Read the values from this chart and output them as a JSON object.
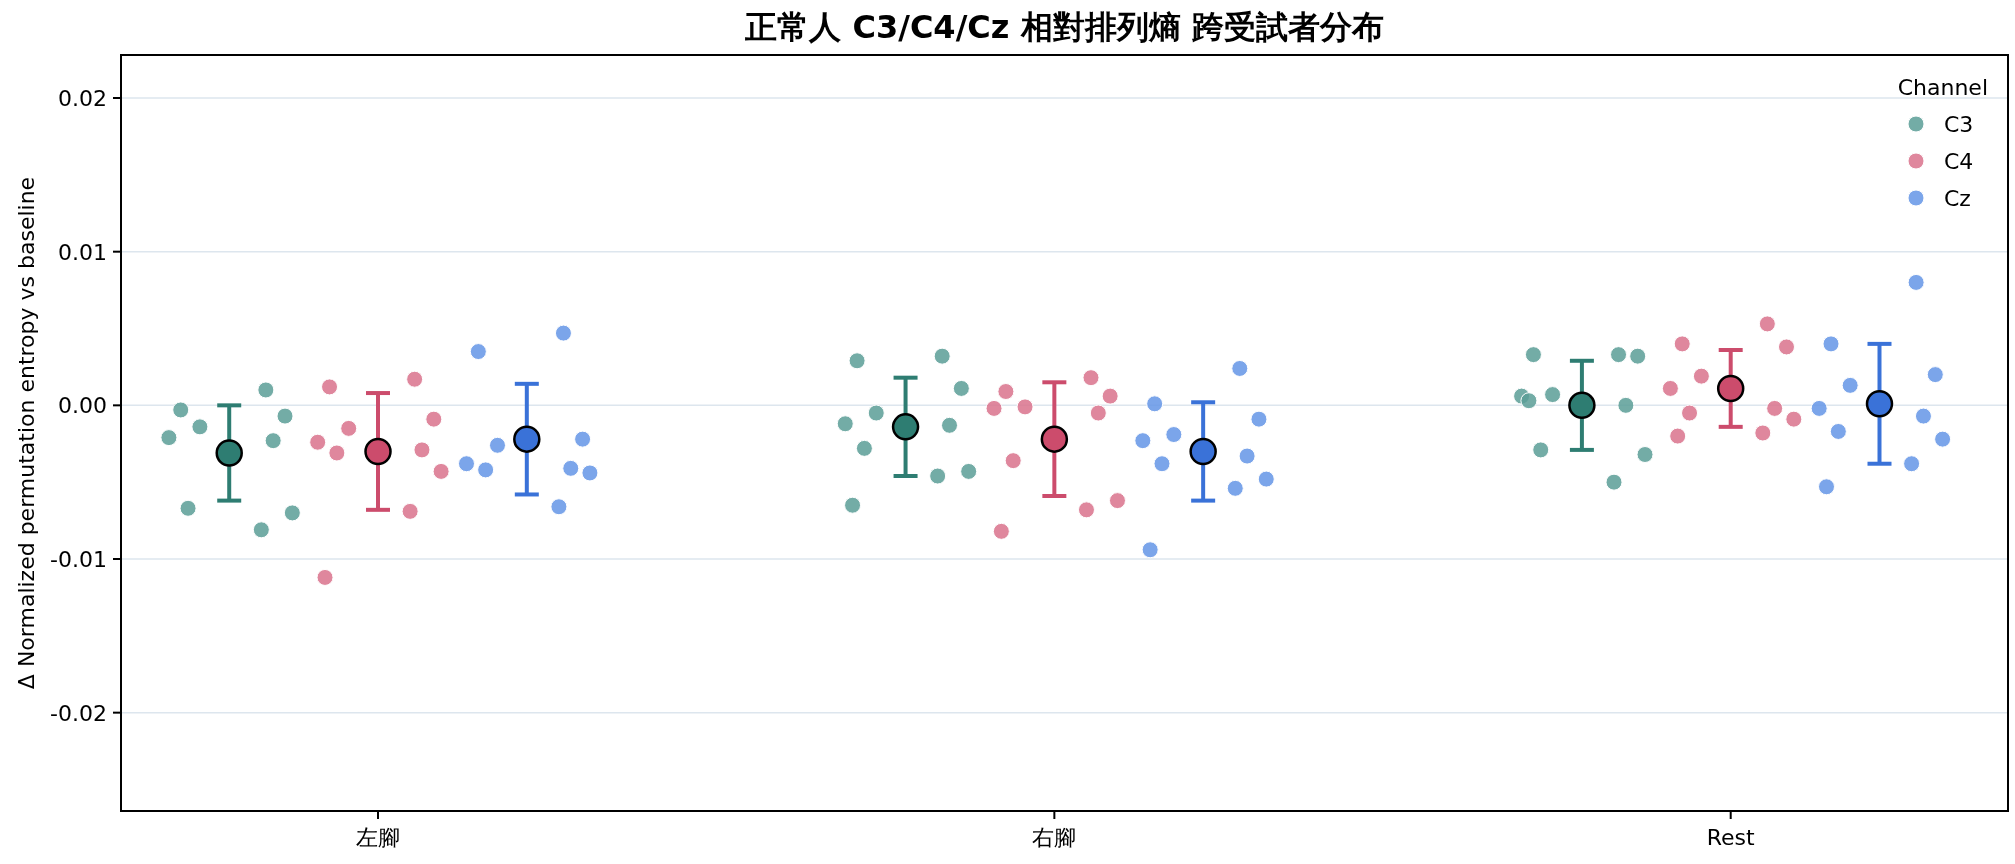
{
  "chart_data": {
    "type": "scatter",
    "title": "正常人 C3/C4/Cz 相對排列熵 跨受試者分布",
    "ylabel": "Δ Normalized permutation entropy vs baseline",
    "legend_title": "Channel",
    "legend": "top right",
    "grid": "y",
    "marker": "circle",
    "categories": [
      "左腳",
      "右腳",
      "Rest"
    ],
    "ylim": [
      -0.0264,
      0.0228
    ],
    "yticks": [
      -0.02,
      -0.01,
      {
        "value": 0,
        "label": "0.00"
      },
      0.01,
      0.02
    ],
    "series": [
      {
        "name": "C3",
        "color": "#5a9e96",
        "x": [
          "左腳",
          "左腳",
          "左腳",
          "左腳",
          "左腳",
          "左腳",
          "左腳",
          "左腳",
          "左腳",
          "右腳",
          "右腳",
          "右腳",
          "右腳",
          "右腳",
          "右腳",
          "右腳",
          "右腳",
          "右腳",
          "右腳",
          "Rest",
          "Rest",
          "Rest",
          "Rest",
          "Rest",
          "Rest",
          "Rest",
          "Rest",
          "Rest",
          "Rest"
        ],
        "values": [
          0.001,
          -0.0003,
          -0.0007,
          -0.0014,
          -0.0021,
          -0.0023,
          -0.0067,
          -0.007,
          -0.0081,
          0.0032,
          0.0029,
          0.0011,
          -0.0005,
          -0.0012,
          -0.0013,
          -0.0028,
          -0.0043,
          -0.0046,
          -0.0065,
          0.0033,
          0.0033,
          0.0032,
          0.0007,
          0.0006,
          0.0,
          -0.0029,
          -0.0032,
          -0.005,
          0.0003
        ]
      },
      {
        "name": "C4",
        "color": "#d9728c",
        "x": [
          "左腳",
          "左腳",
          "左腳",
          "左腳",
          "左腳",
          "左腳",
          "左腳",
          "左腳",
          "左腳",
          "左腳",
          "右腳",
          "右腳",
          "右腳",
          "右腳",
          "右腳",
          "右腳",
          "右腳",
          "右腳",
          "右腳",
          "右腳",
          "Rest",
          "Rest",
          "Rest",
          "Rest",
          "Rest",
          "Rest",
          "Rest",
          "Rest",
          "Rest",
          "Rest"
        ],
        "values": [
          0.0017,
          0.0012,
          -0.0009,
          -0.0015,
          -0.0024,
          -0.0029,
          -0.0031,
          -0.0043,
          -0.0069,
          -0.0112,
          0.0018,
          0.0009,
          0.0006,
          -0.0001,
          -0.0002,
          -0.0005,
          -0.0036,
          -0.0062,
          -0.0068,
          -0.0082,
          0.0053,
          0.004,
          0.0038,
          0.0019,
          0.0011,
          -0.0002,
          -0.0005,
          -0.0009,
          -0.0018,
          -0.002
        ]
      },
      {
        "name": "Cz",
        "color": "#6495e6",
        "x": [
          "左腳",
          "左腳",
          "左腳",
          "左腳",
          "左腳",
          "左腳",
          "左腳",
          "左腳",
          "左腳",
          "右腳",
          "右腳",
          "右腳",
          "右腳",
          "右腳",
          "右腳",
          "右腳",
          "右腳",
          "右腳",
          "右腳",
          "Rest",
          "Rest",
          "Rest",
          "Rest",
          "Rest",
          "Rest",
          "Rest",
          "Rest",
          "Rest",
          "Rest"
        ],
        "values": [
          0.0047,
          0.0035,
          -0.0022,
          -0.0026,
          -0.0038,
          -0.0041,
          -0.0042,
          -0.0044,
          -0.0066,
          0.0024,
          0.0001,
          -0.0009,
          -0.0019,
          -0.0023,
          -0.0033,
          -0.0038,
          -0.0048,
          -0.0054,
          -0.0094,
          0.008,
          0.004,
          0.002,
          0.0013,
          -0.0002,
          -0.0007,
          -0.0017,
          -0.0022,
          -0.0038,
          -0.0053
        ]
      },
      {
        "color": "#2e7d72",
        "values": [
          -0.0031,
          -0.0014,
          0.0
        ],
        "errors": [
          0.0031,
          0.0032,
          0.0029
        ]
      },
      {
        "color": "#cc4c6c",
        "values": [
          -0.003,
          -0.0022,
          0.0011
        ],
        "errors": [
          0.0038,
          0.0037,
          0.0025
        ]
      },
      {
        "color": "#3a72d8",
        "values": [
          -0.0022,
          -0.003,
          0.0001
        ],
        "errors": [
          0.0036,
          0.0032,
          0.0039
        ]
      }
    ]
  }
}
